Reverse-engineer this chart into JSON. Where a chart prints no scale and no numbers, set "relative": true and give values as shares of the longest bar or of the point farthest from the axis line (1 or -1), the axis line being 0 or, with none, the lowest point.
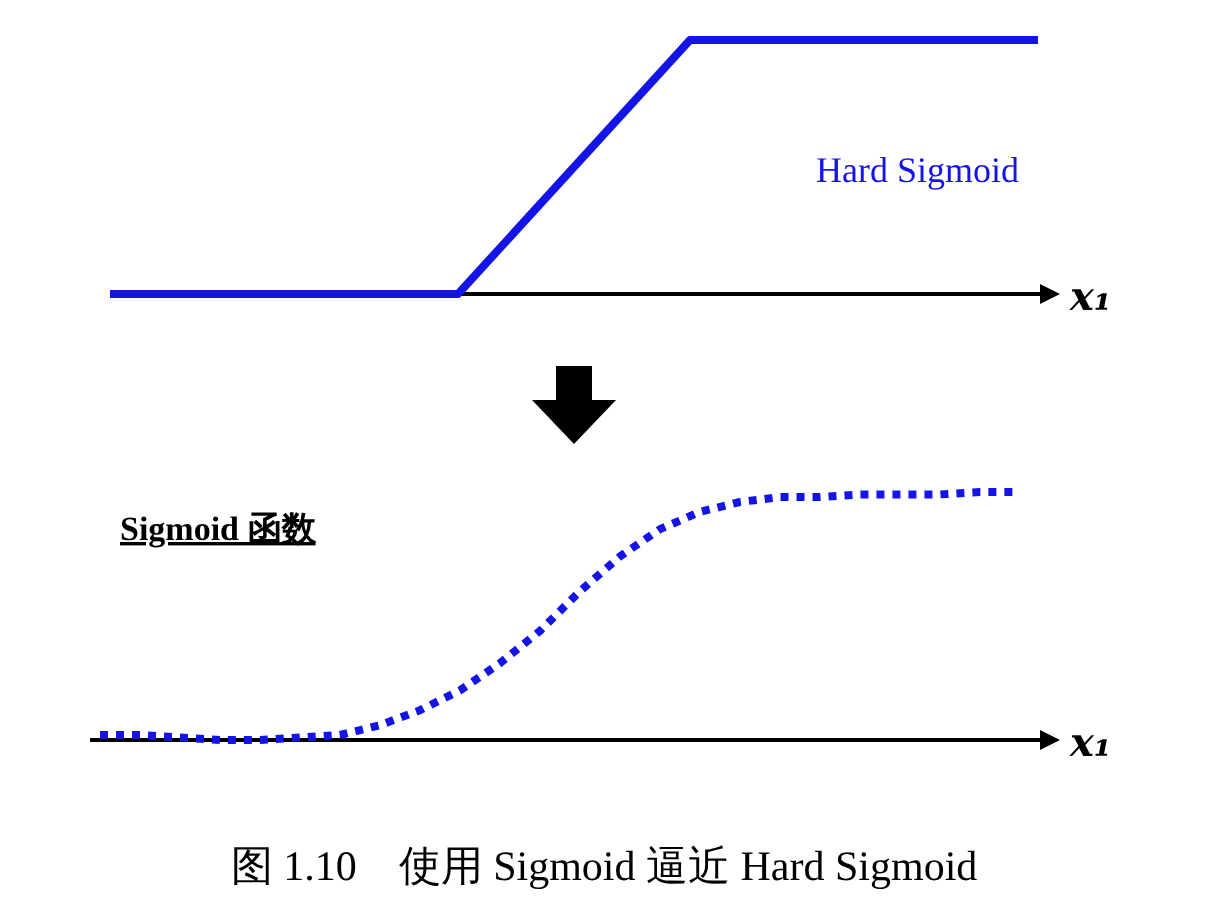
{
  "chart_data": [
    {
      "type": "line",
      "relative": true,
      "xlabel": "x₁",
      "categories": [
        null,
        null,
        null,
        null,
        null,
        null,
        null,
        null,
        null
      ],
      "series": [
        {
          "name": "Hard Sigmoid",
          "color": "#1414e6",
          "line_style": "solid",
          "values": [
            0,
            0,
            0,
            0,
            0.5,
            1,
            1,
            1,
            1
          ]
        }
      ]
    },
    {
      "type": "line",
      "relative": true,
      "xlabel": "x₁",
      "categories": [
        null,
        null,
        null,
        null,
        null,
        null,
        null,
        null,
        null,
        null,
        null,
        null,
        null,
        null,
        null,
        null,
        null,
        null,
        null,
        null,
        null,
        null,
        null,
        null
      ],
      "series": [
        {
          "name": "Sigmoid 函数",
          "color": "#1414e6",
          "line_style": "dotted",
          "values": [
            0.02,
            0.02,
            0.01,
            0,
            0,
            0.01,
            0.02,
            0.06,
            0.12,
            0.2,
            0.31,
            0.44,
            0.6,
            0.74,
            0.85,
            0.92,
            0.96,
            0.98,
            0.98,
            0.99,
            0.99,
            0.99,
            1,
            1
          ]
        }
      ],
      "annotations": [
        "图 1.10　使用 Sigmoid 逼近 Hard Sigmoid"
      ]
    }
  ]
}
